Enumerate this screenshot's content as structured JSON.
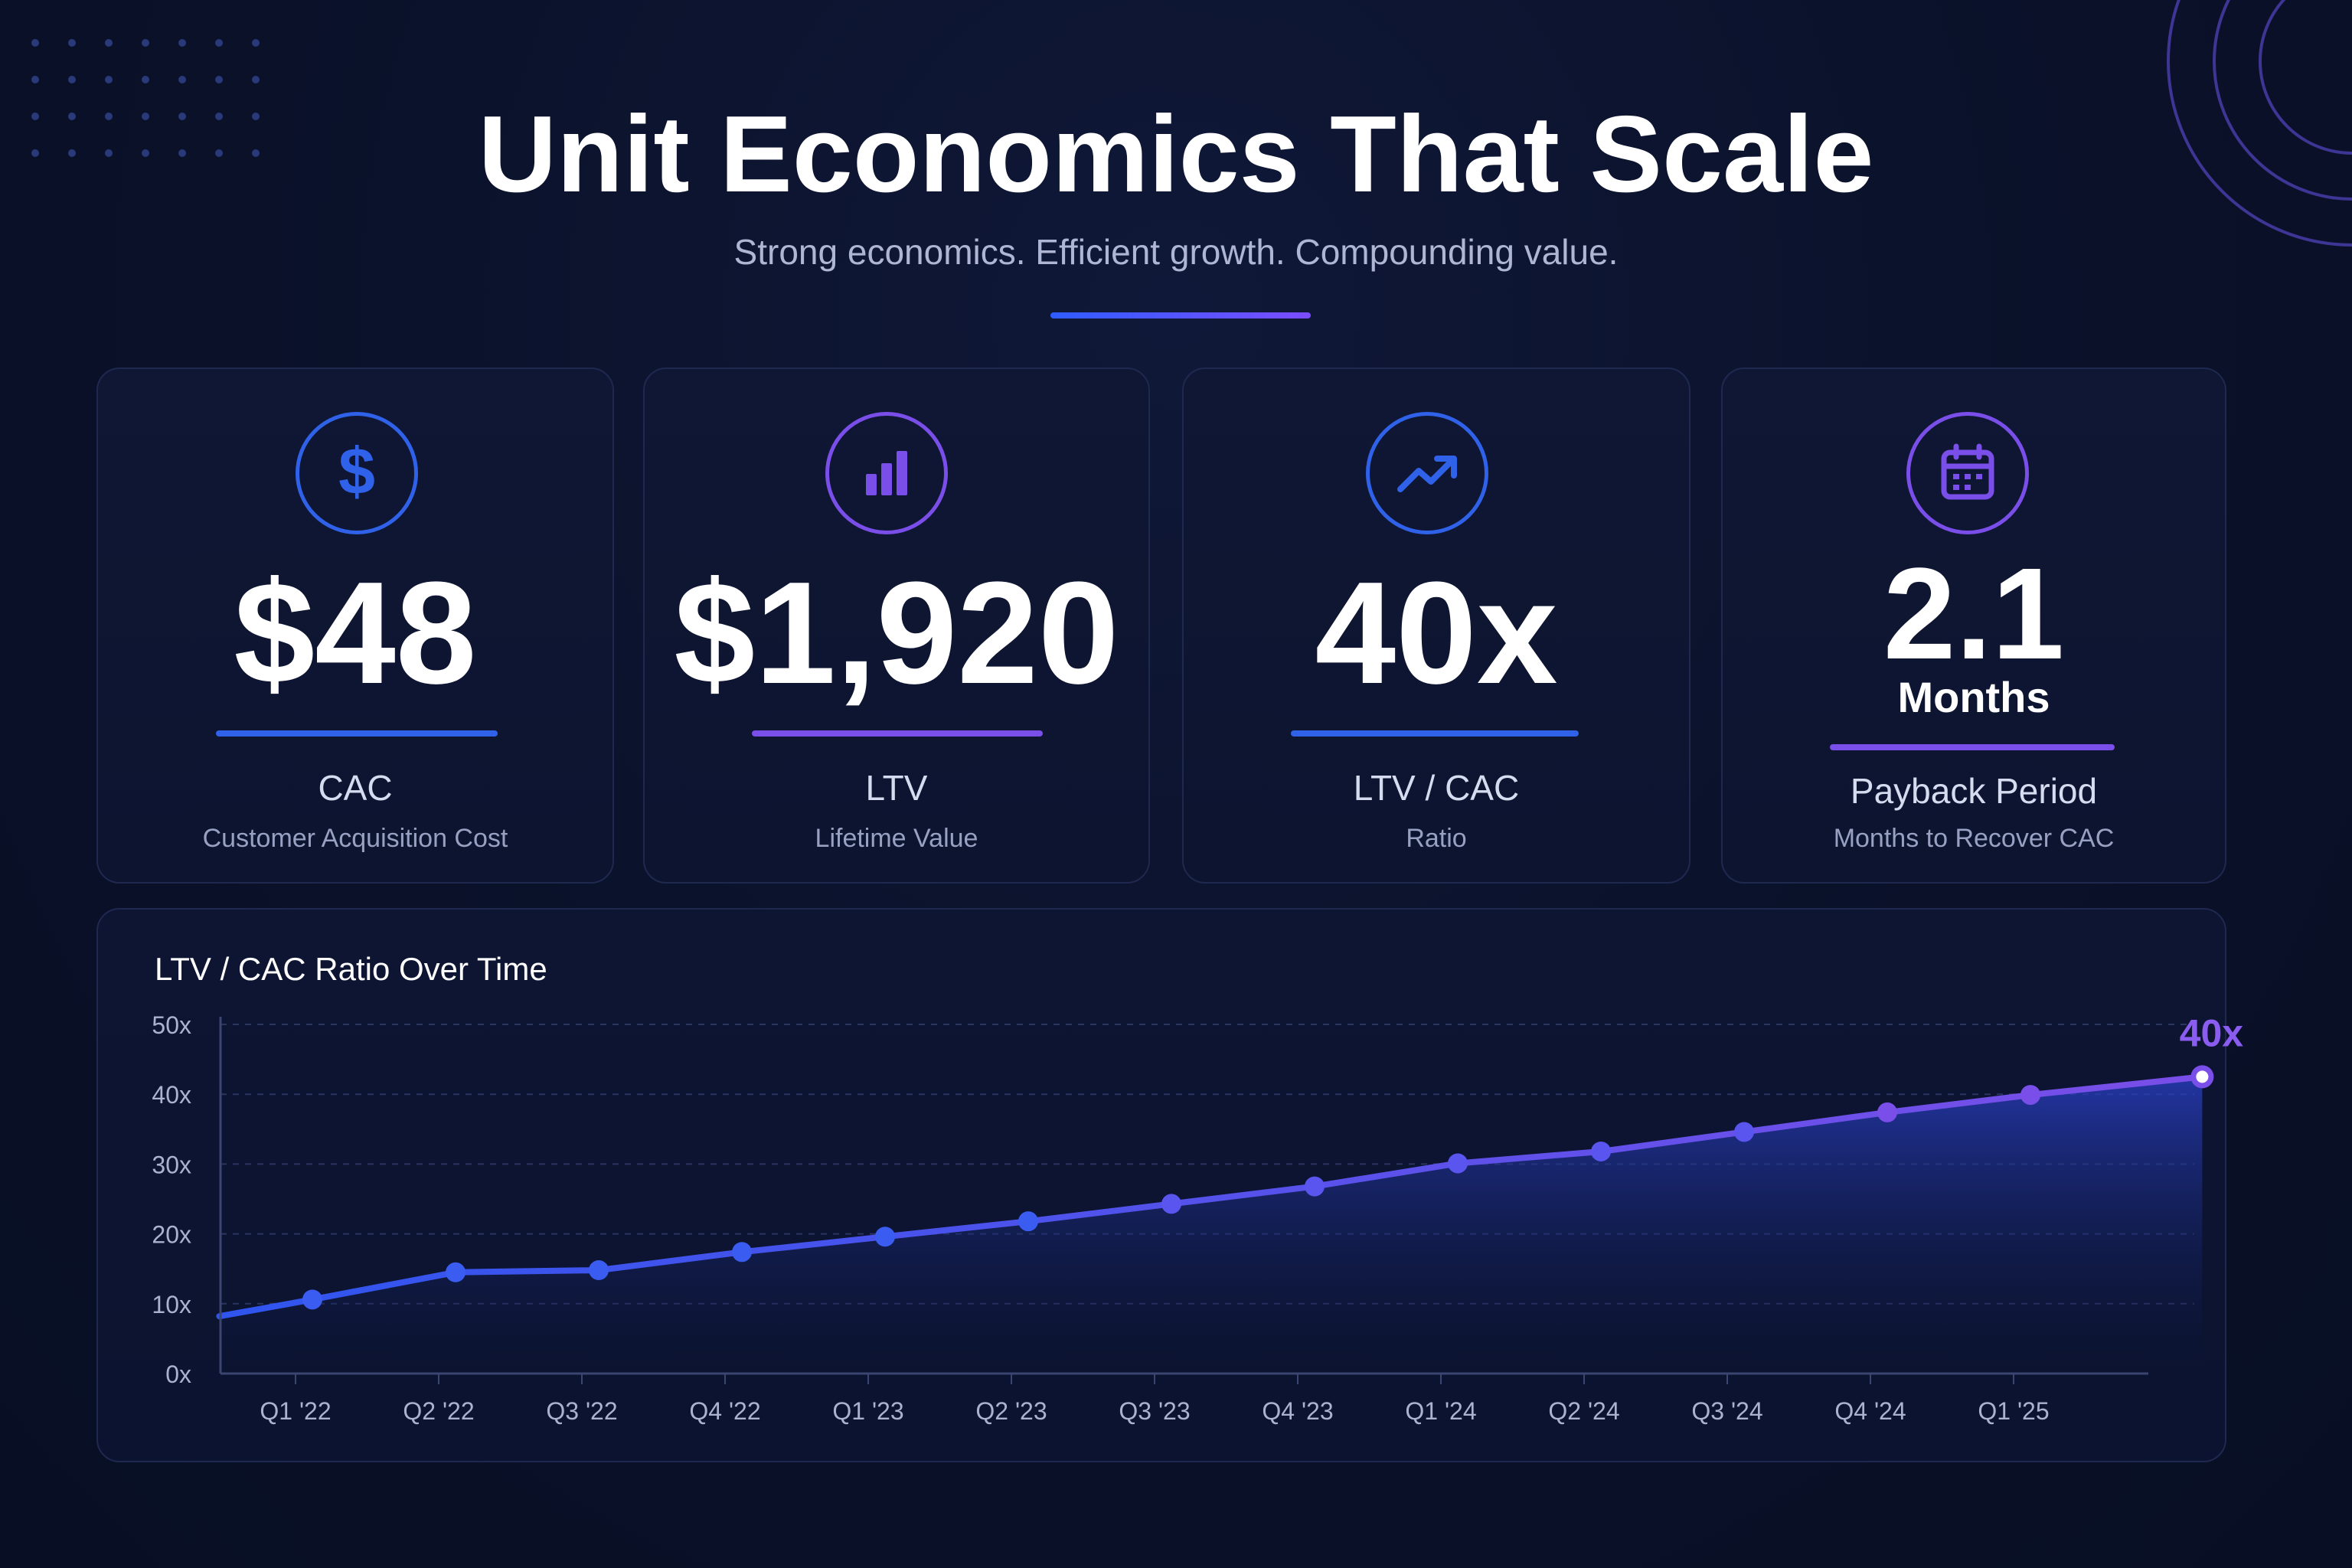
{
  "header": {
    "title": "Unit Economics That Scale",
    "subtitle": "Strong economics. Efficient growth. Compounding value."
  },
  "colors": {
    "background": "#0b1230",
    "accent_blue": "#2f62e8",
    "accent_purple": "#7a4ee8",
    "text_muted": "#98a1c2"
  },
  "metrics": [
    {
      "icon": "dollar-icon",
      "value": "$48",
      "label": "CAC",
      "description": "Customer Acquisition Cost",
      "accent": "blue"
    },
    {
      "icon": "bar-chart-icon",
      "value": "$1,920",
      "label": "LTV",
      "description": "Lifetime Value",
      "accent": "purple"
    },
    {
      "icon": "trending-up-icon",
      "value": "40x",
      "label": "LTV / CAC",
      "description": "Ratio",
      "accent": "blue"
    },
    {
      "icon": "calendar-icon",
      "value": "2.1",
      "unit": "Months",
      "label": "Payback Period",
      "description": "Months to Recover CAC",
      "accent": "purple"
    }
  ],
  "chart_data": {
    "type": "area",
    "title": "LTV / CAC Ratio Over Time",
    "y_tick_labels": [
      "0x",
      "10x",
      "20x",
      "30x",
      "40x",
      "50x"
    ],
    "ylim": [
      0,
      50
    ],
    "x_tick_labels": [
      "Q1 '22",
      "Q2 '22",
      "Q3 '22",
      "Q4 '22",
      "Q1 '23",
      "Q2 '23",
      "Q3 '23",
      "Q4 '23",
      "Q1 '24",
      "Q2 '24",
      "Q3 '24",
      "Q4 '24",
      "Q1 '25"
    ],
    "series": [
      {
        "x": [
          -0.65,
          0,
          1,
          2,
          3,
          4,
          5,
          6,
          7,
          8,
          9,
          10,
          11,
          12,
          13.2
        ],
        "values": [
          8.2,
          10.6,
          14.5,
          14.8,
          17.4,
          19.6,
          21.8,
          24.3,
          26.8,
          30.1,
          31.8,
          34.6,
          37.4,
          39.9,
          42.5
        ]
      }
    ],
    "end_label": "40x",
    "grid": true,
    "grid_style": "dashed horizontal"
  }
}
